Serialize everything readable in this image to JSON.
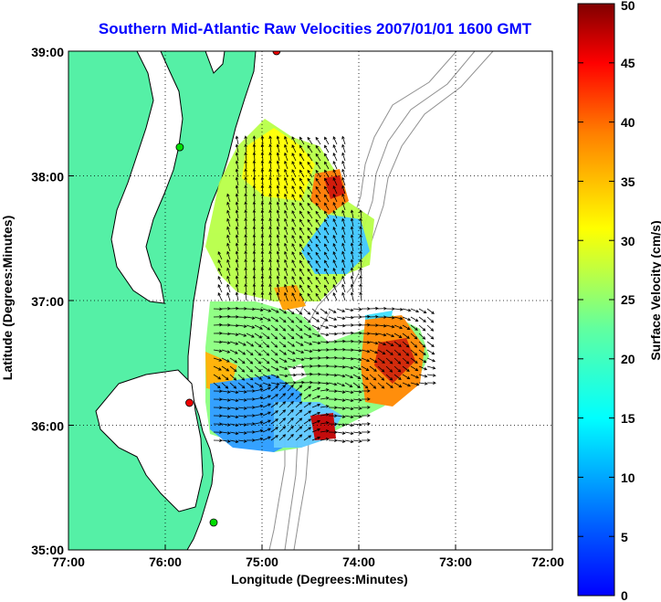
{
  "title": "Southern Mid-Atlantic Raw Velocities 2007/01/01 1600 GMT",
  "map": {
    "xlabel": "Longitude (Degrees:Minutes)",
    "ylabel": "Latitude (Degrees:Minutes)",
    "lon_ticks": [
      "77:00",
      "76:00",
      "75:00",
      "74:00",
      "73:00",
      "72:00"
    ],
    "lat_ticks": [
      "39:00",
      "38:00",
      "37:00",
      "36:00",
      "35:00"
    ],
    "lon_range": [
      -77,
      -72
    ],
    "lat_range": [
      35,
      39
    ],
    "grid": "dotted",
    "colors": {
      "land": "#55f0a6",
      "coast": "#000000",
      "bathymetry": "#909090",
      "station": "#00dd00",
      "station_alt": "#ee0000",
      "title": "#0000ff"
    }
  },
  "colorbar": {
    "label": "Surface Velocity (cm/s)",
    "ticks": [
      "0",
      "5",
      "10",
      "15",
      "20",
      "25",
      "30",
      "35",
      "40",
      "45",
      "50"
    ],
    "range": [
      0,
      50
    ],
    "colormap": "jet"
  },
  "stations": [
    {
      "lon": -74.85,
      "lat": 39.0,
      "color": "station_alt"
    },
    {
      "lon": -75.85,
      "lat": 38.23,
      "color": "station"
    },
    {
      "lon": -75.75,
      "lat": 36.18,
      "color": "station_alt"
    },
    {
      "lon": -75.5,
      "lat": 35.22,
      "color": "station"
    }
  ]
}
